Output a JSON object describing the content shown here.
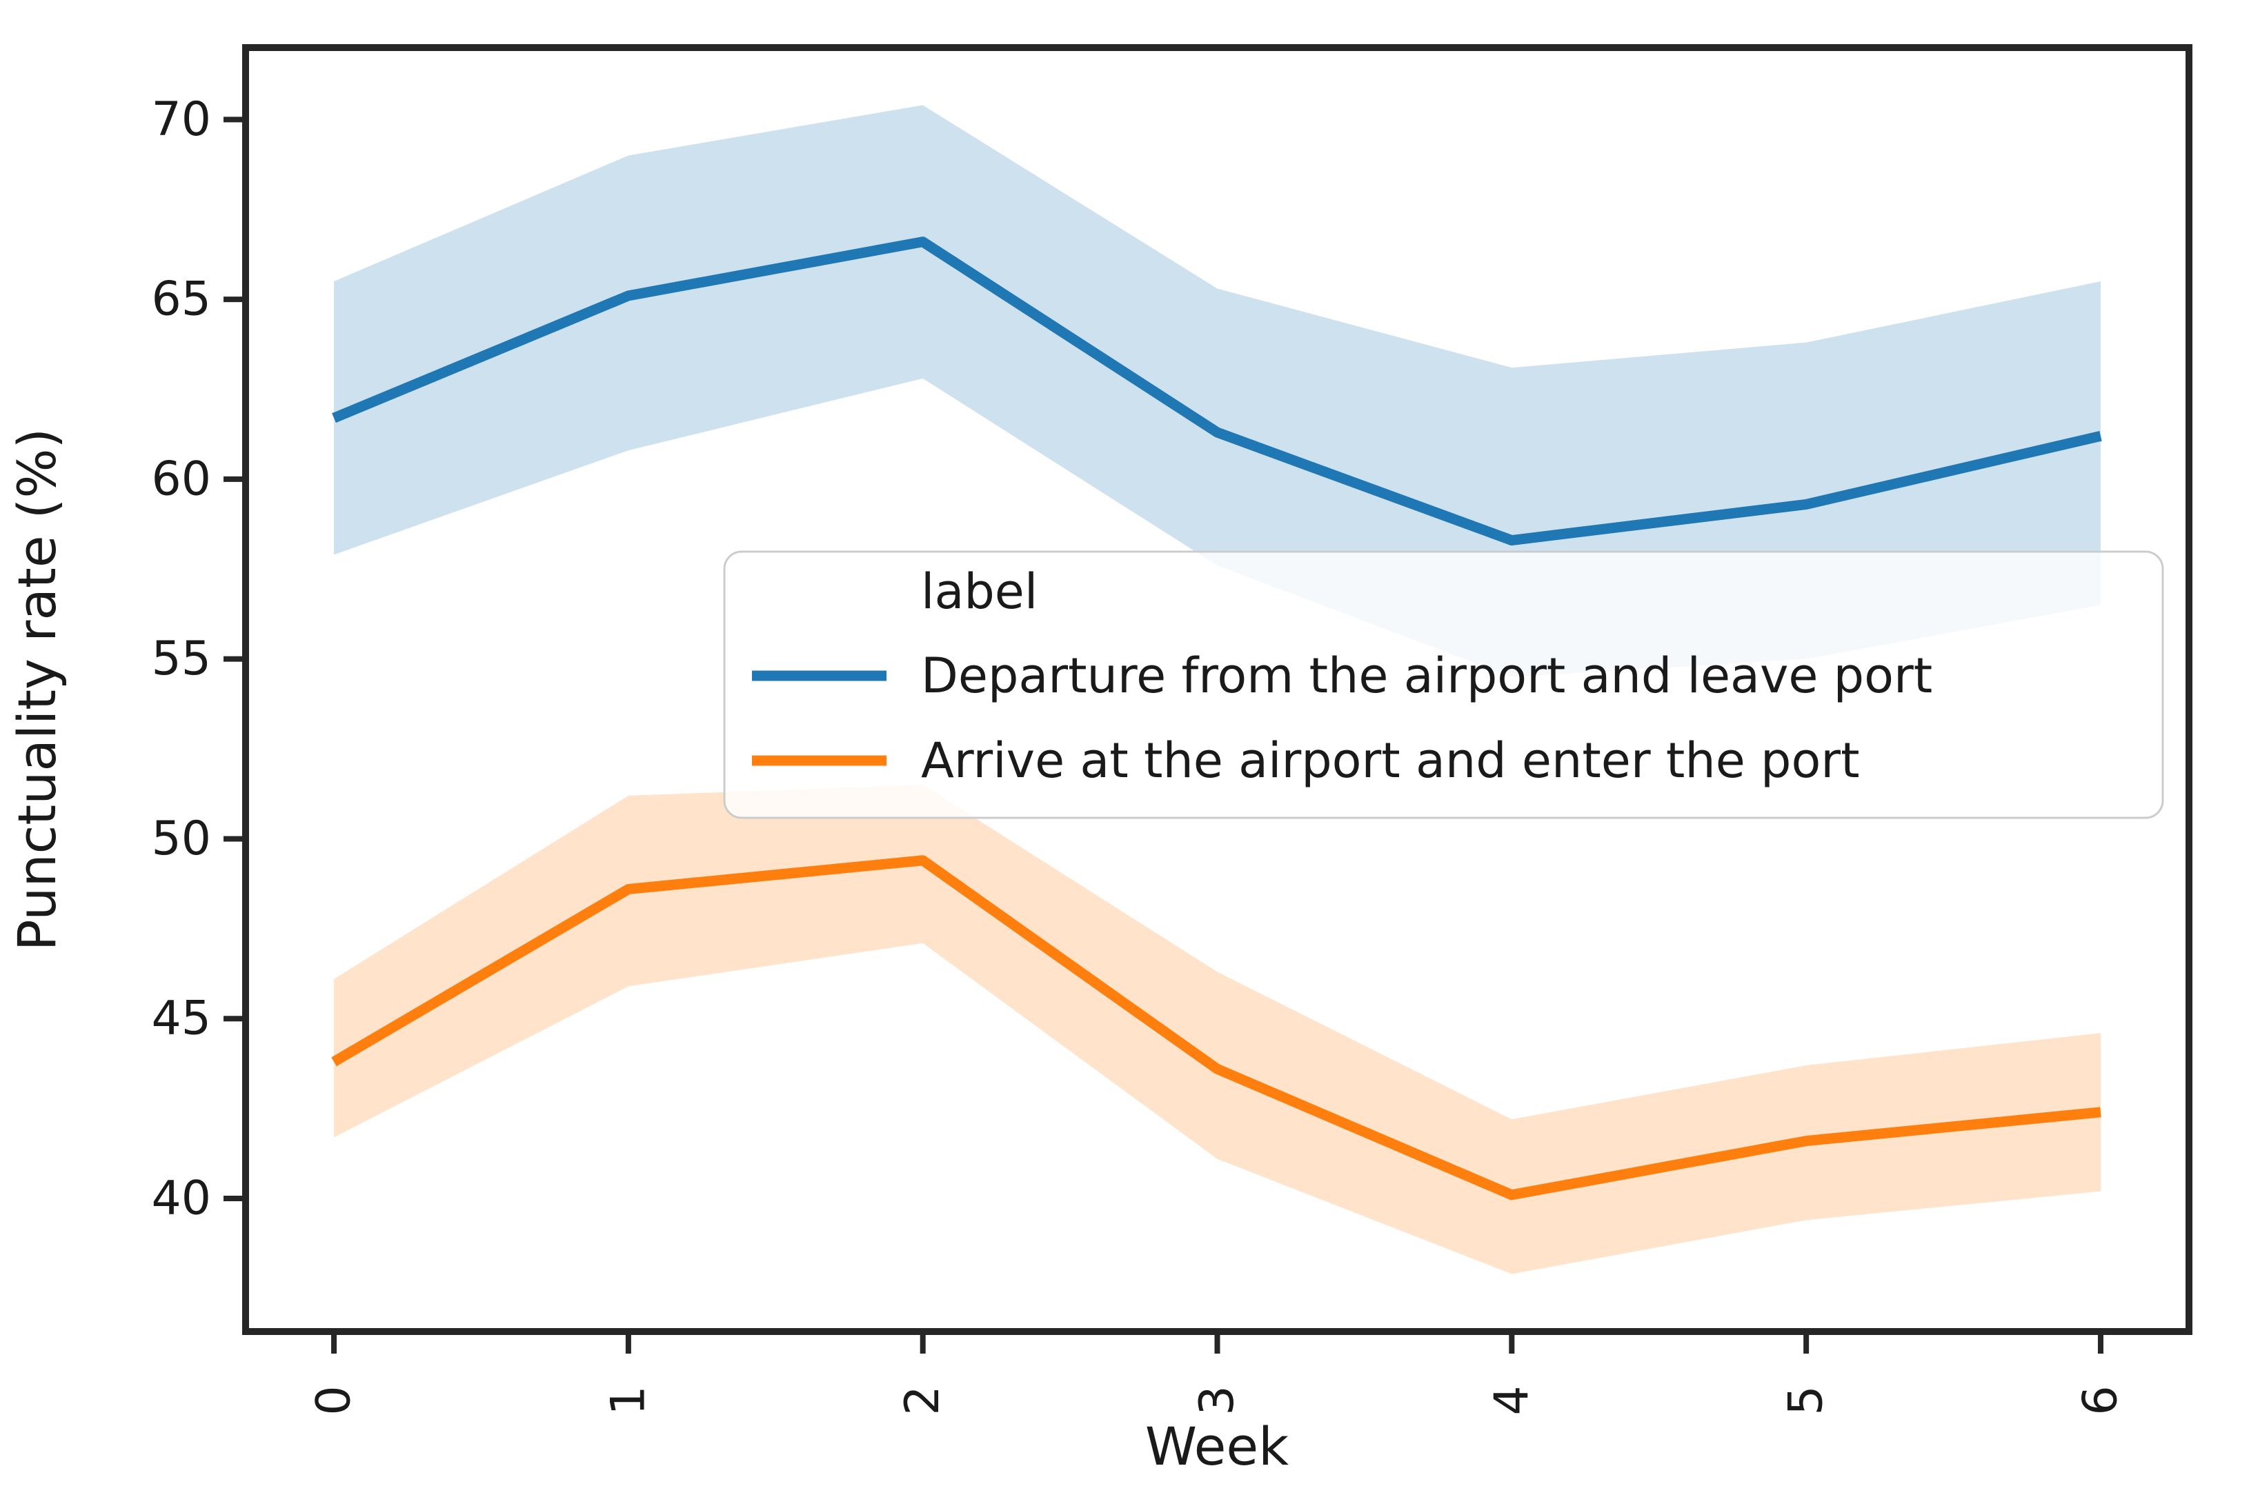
{
  "chart_data": {
    "type": "line",
    "title": "",
    "xlabel": "Week",
    "ylabel": "Punctuality rate (%)",
    "x": [
      0,
      1,
      2,
      3,
      4,
      5,
      6
    ],
    "xticks": [
      "0",
      "1",
      "2",
      "3",
      "4",
      "5",
      "6"
    ],
    "yticks": [
      "40",
      "45",
      "50",
      "55",
      "60",
      "65",
      "70"
    ],
    "ytick_values": [
      40,
      45,
      50,
      55,
      60,
      65,
      70
    ],
    "xlim": [
      -0.3,
      6.3
    ],
    "ylim": [
      36.3,
      72.0
    ],
    "grid": false,
    "x_tick_rotation": 90,
    "legend": {
      "title": "label",
      "frame": true,
      "location": "center right"
    },
    "series": [
      {
        "name": "Departure from the airport and leave port",
        "color": "#1f77b4",
        "band_alpha": 0.22,
        "values": [
          61.7,
          65.1,
          66.6,
          61.3,
          58.3,
          59.3,
          61.2
        ],
        "band_high": [
          65.5,
          69.0,
          70.4,
          65.3,
          63.1,
          63.8,
          65.5
        ],
        "band_low": [
          57.9,
          60.8,
          62.8,
          57.6,
          54.5,
          55.0,
          56.5
        ]
      },
      {
        "name": "Arrive at the airport and enter the port",
        "color": "#ff7f0e",
        "band_alpha": 0.22,
        "values": [
          43.8,
          48.6,
          49.4,
          43.6,
          40.1,
          41.6,
          42.4
        ],
        "band_high": [
          46.1,
          51.2,
          51.5,
          46.3,
          42.2,
          43.7,
          44.6
        ],
        "band_low": [
          41.7,
          45.9,
          47.1,
          41.1,
          37.9,
          39.4,
          40.2
        ]
      }
    ]
  }
}
